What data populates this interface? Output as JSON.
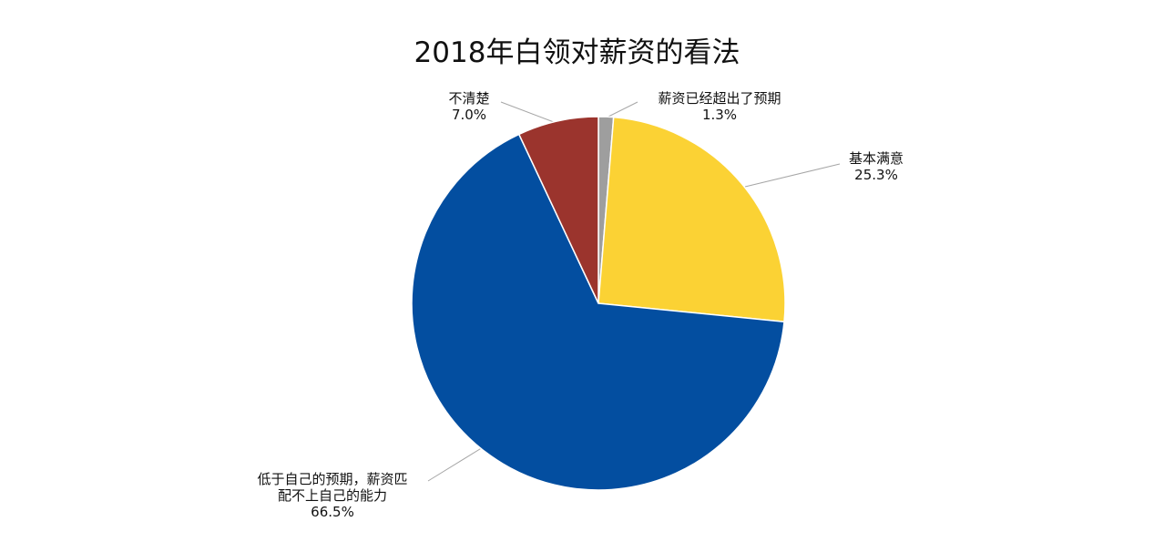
{
  "chart_data": {
    "type": "pie",
    "title": "2018年白领对薪资的看法",
    "start_angle_deg": 0,
    "direction": "clockwise",
    "legend": "none",
    "slices": [
      {
        "name": "薪资已经超出了预期",
        "label_lines": [
          "薪资已经超出了预期"
        ],
        "value": 1.3,
        "value_label": "1.3%",
        "color": "#9e9e9e"
      },
      {
        "name": "基本满意",
        "label_lines": [
          "基本满意"
        ],
        "value": 25.3,
        "value_label": "25.3%",
        "color": "#fbd234"
      },
      {
        "name": "低于自己的预期，薪资匹配不上自己的能力",
        "label_lines": [
          "低于自己的预期，薪资匹",
          "配不上自己的能力"
        ],
        "value": 66.5,
        "value_label": "66.5%",
        "color": "#034ea0"
      },
      {
        "name": "不清楚",
        "label_lines": [
          "不清楚"
        ],
        "value": 7.0,
        "value_label": "7.0%",
        "color": "#9b342d"
      }
    ]
  }
}
